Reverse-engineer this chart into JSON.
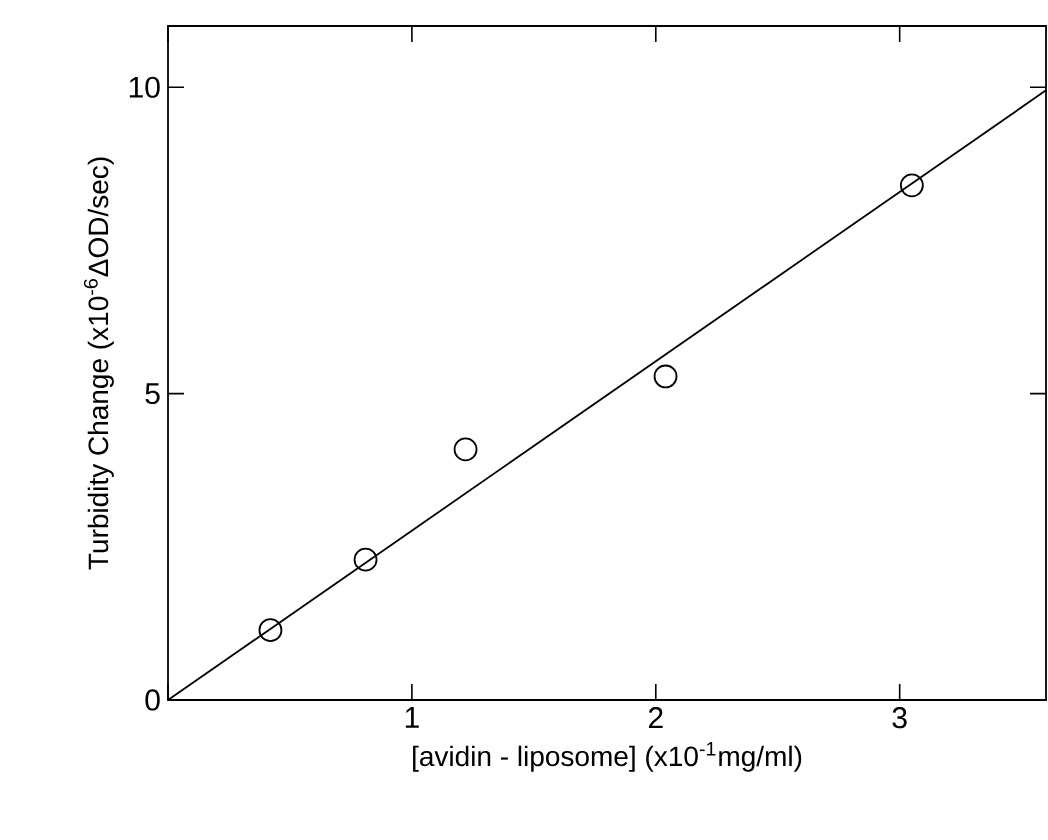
{
  "chart_data": {
    "type": "scatter",
    "xlabel": "[avidin - liposome]     (x10$^{-1}$mg/ml)",
    "ylabel": "Turbidity  Change  (x10$^{-6}$ΔOD/sec)",
    "xlim": [
      0,
      3.6
    ],
    "ylim": [
      0,
      11
    ],
    "xticks": [
      {
        "value": 0,
        "label": null
      },
      1,
      2,
      3
    ],
    "yticks": [
      0,
      5,
      10
    ],
    "marker": "circle",
    "series": [
      {
        "color": "#000000",
        "x": [
          0.42,
          0.81,
          1.22,
          2.04,
          3.05
        ],
        "values": [
          1.14,
          2.29,
          4.09,
          5.28,
          8.4
        ]
      },
      {
        "type": "line",
        "color": "#000000",
        "line_style": "solid",
        "marker": "none",
        "x": [
          0,
          3.6
        ],
        "values": [
          0,
          9.95
        ]
      }
    ]
  }
}
